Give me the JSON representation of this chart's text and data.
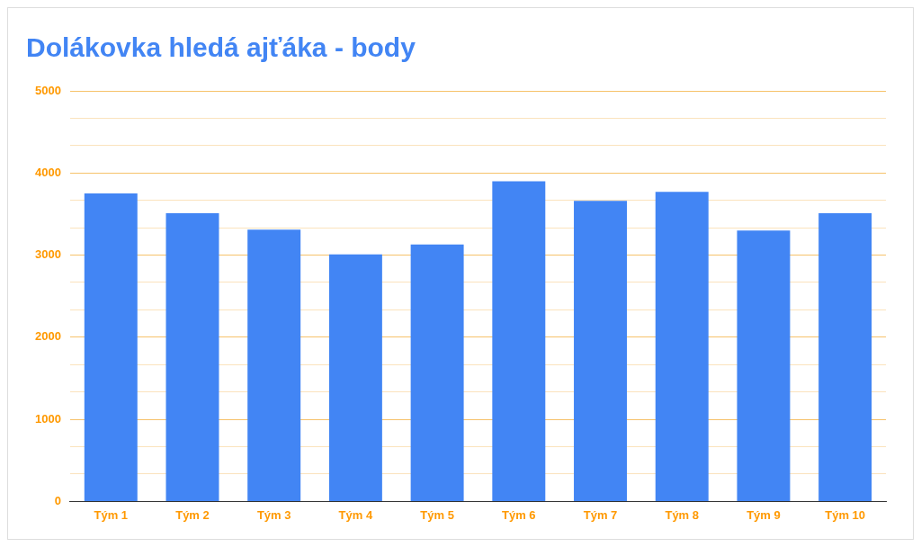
{
  "chart_data": {
    "type": "bar",
    "title": "Dolákovka hledá ajťáka - body",
    "categories": [
      "Tým 1",
      "Tým 2",
      "Tým 3",
      "Tým 4",
      "Tým 5",
      "Tým 6",
      "Tým 7",
      "Tým 8",
      "Tým 9",
      "Tým 10"
    ],
    "values": [
      3750,
      3510,
      3310,
      3010,
      3130,
      3900,
      3660,
      3770,
      3300,
      3510
    ],
    "color": "#4285f4",
    "ylim": [
      0,
      5000
    ],
    "yticks": [
      0,
      {
        "value": 333.3,
        "label": null
      },
      {
        "value": 666.7,
        "label": null
      },
      1000,
      {
        "value": 1333.3,
        "label": null
      },
      {
        "value": 1666.7,
        "label": null
      },
      2000,
      {
        "value": 2333.3,
        "label": null
      },
      {
        "value": 2666.7,
        "label": null
      },
      3000,
      {
        "value": 3333.3,
        "label": null
      },
      {
        "value": 3666.7,
        "label": null
      },
      4000,
      {
        "value": 4333.3,
        "label": null
      },
      {
        "value": 4666.7,
        "label": null
      },
      5000
    ],
    "grid": "y"
  }
}
